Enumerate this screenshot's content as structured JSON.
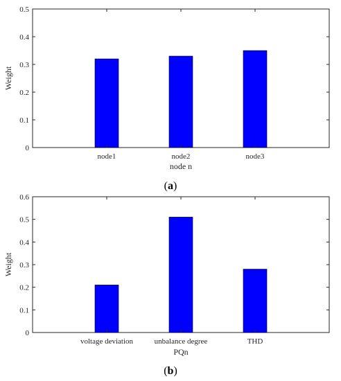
{
  "chart_data": [
    {
      "type": "bar",
      "panel_label": "a",
      "categories": [
        "node1",
        "node2",
        "node3"
      ],
      "values": [
        0.32,
        0.33,
        0.35
      ],
      "xlabel": "node n",
      "ylabel": "Weight",
      "ylim": [
        0,
        0.5
      ],
      "yticks": [
        "0",
        "0.1",
        "0.2",
        "0.3",
        "0.4",
        "0.5"
      ],
      "bar_color": "#0000ff",
      "grid": false,
      "legend": "none"
    },
    {
      "type": "bar",
      "panel_label": "b",
      "categories": [
        "voltage deviation",
        "unbalance degree",
        "THD"
      ],
      "values": [
        0.21,
        0.51,
        0.28
      ],
      "xlabel": "PQn",
      "ylabel": "Weight",
      "ylim": [
        0,
        0.6
      ],
      "yticks": [
        "0",
        "0.1",
        "0.2",
        "0.3",
        "0.4",
        "0.5",
        "0.6"
      ],
      "bar_color": "#0000ff",
      "grid": false,
      "legend": "none"
    }
  ]
}
